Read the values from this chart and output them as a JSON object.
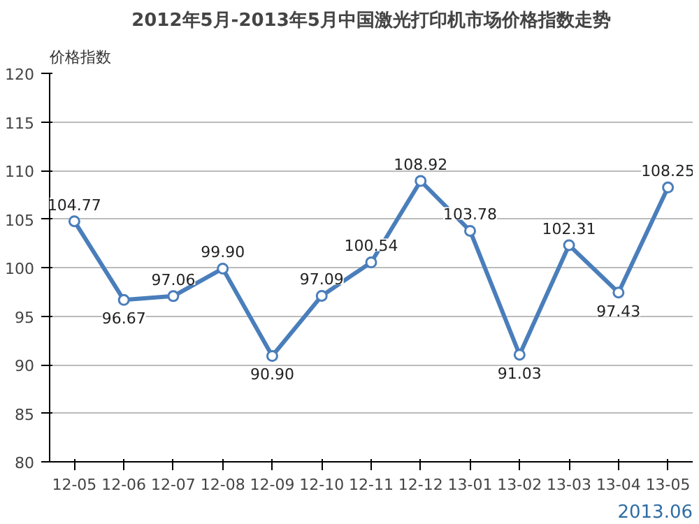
{
  "chart_data": {
    "type": "line",
    "title": "2012年5月-2013年5月中国激光打印机市场价格指数走势",
    "ylabel": "价格指数",
    "categories": [
      "12-05",
      "12-06",
      "12-07",
      "12-08",
      "12-09",
      "12-10",
      "12-11",
      "12-12",
      "13-01",
      "13-02",
      "13-03",
      "13-04",
      "13-05"
    ],
    "series": [
      {
        "color": "#4a7ebb",
        "values": [
          104.77,
          96.67,
          97.06,
          99.9,
          90.9,
          97.09,
          100.54,
          108.92,
          103.78,
          91.03,
          102.31,
          97.43,
          108.25
        ]
      }
    ],
    "value_labels": [
      "104.77",
      "96.67",
      "97.06",
      "99.90",
      "90.90",
      "97.09",
      "100.54",
      "108.92",
      "103.78",
      "91.03",
      "102.31",
      "97.43",
      "108.25"
    ],
    "ylim": [
      80,
      120
    ],
    "yticks": [
      80,
      85,
      90,
      95,
      100,
      105,
      110,
      115,
      120
    ],
    "grid": "y",
    "marker": "circle",
    "line_style": "solid",
    "annotations": [
      "2013.06"
    ]
  }
}
